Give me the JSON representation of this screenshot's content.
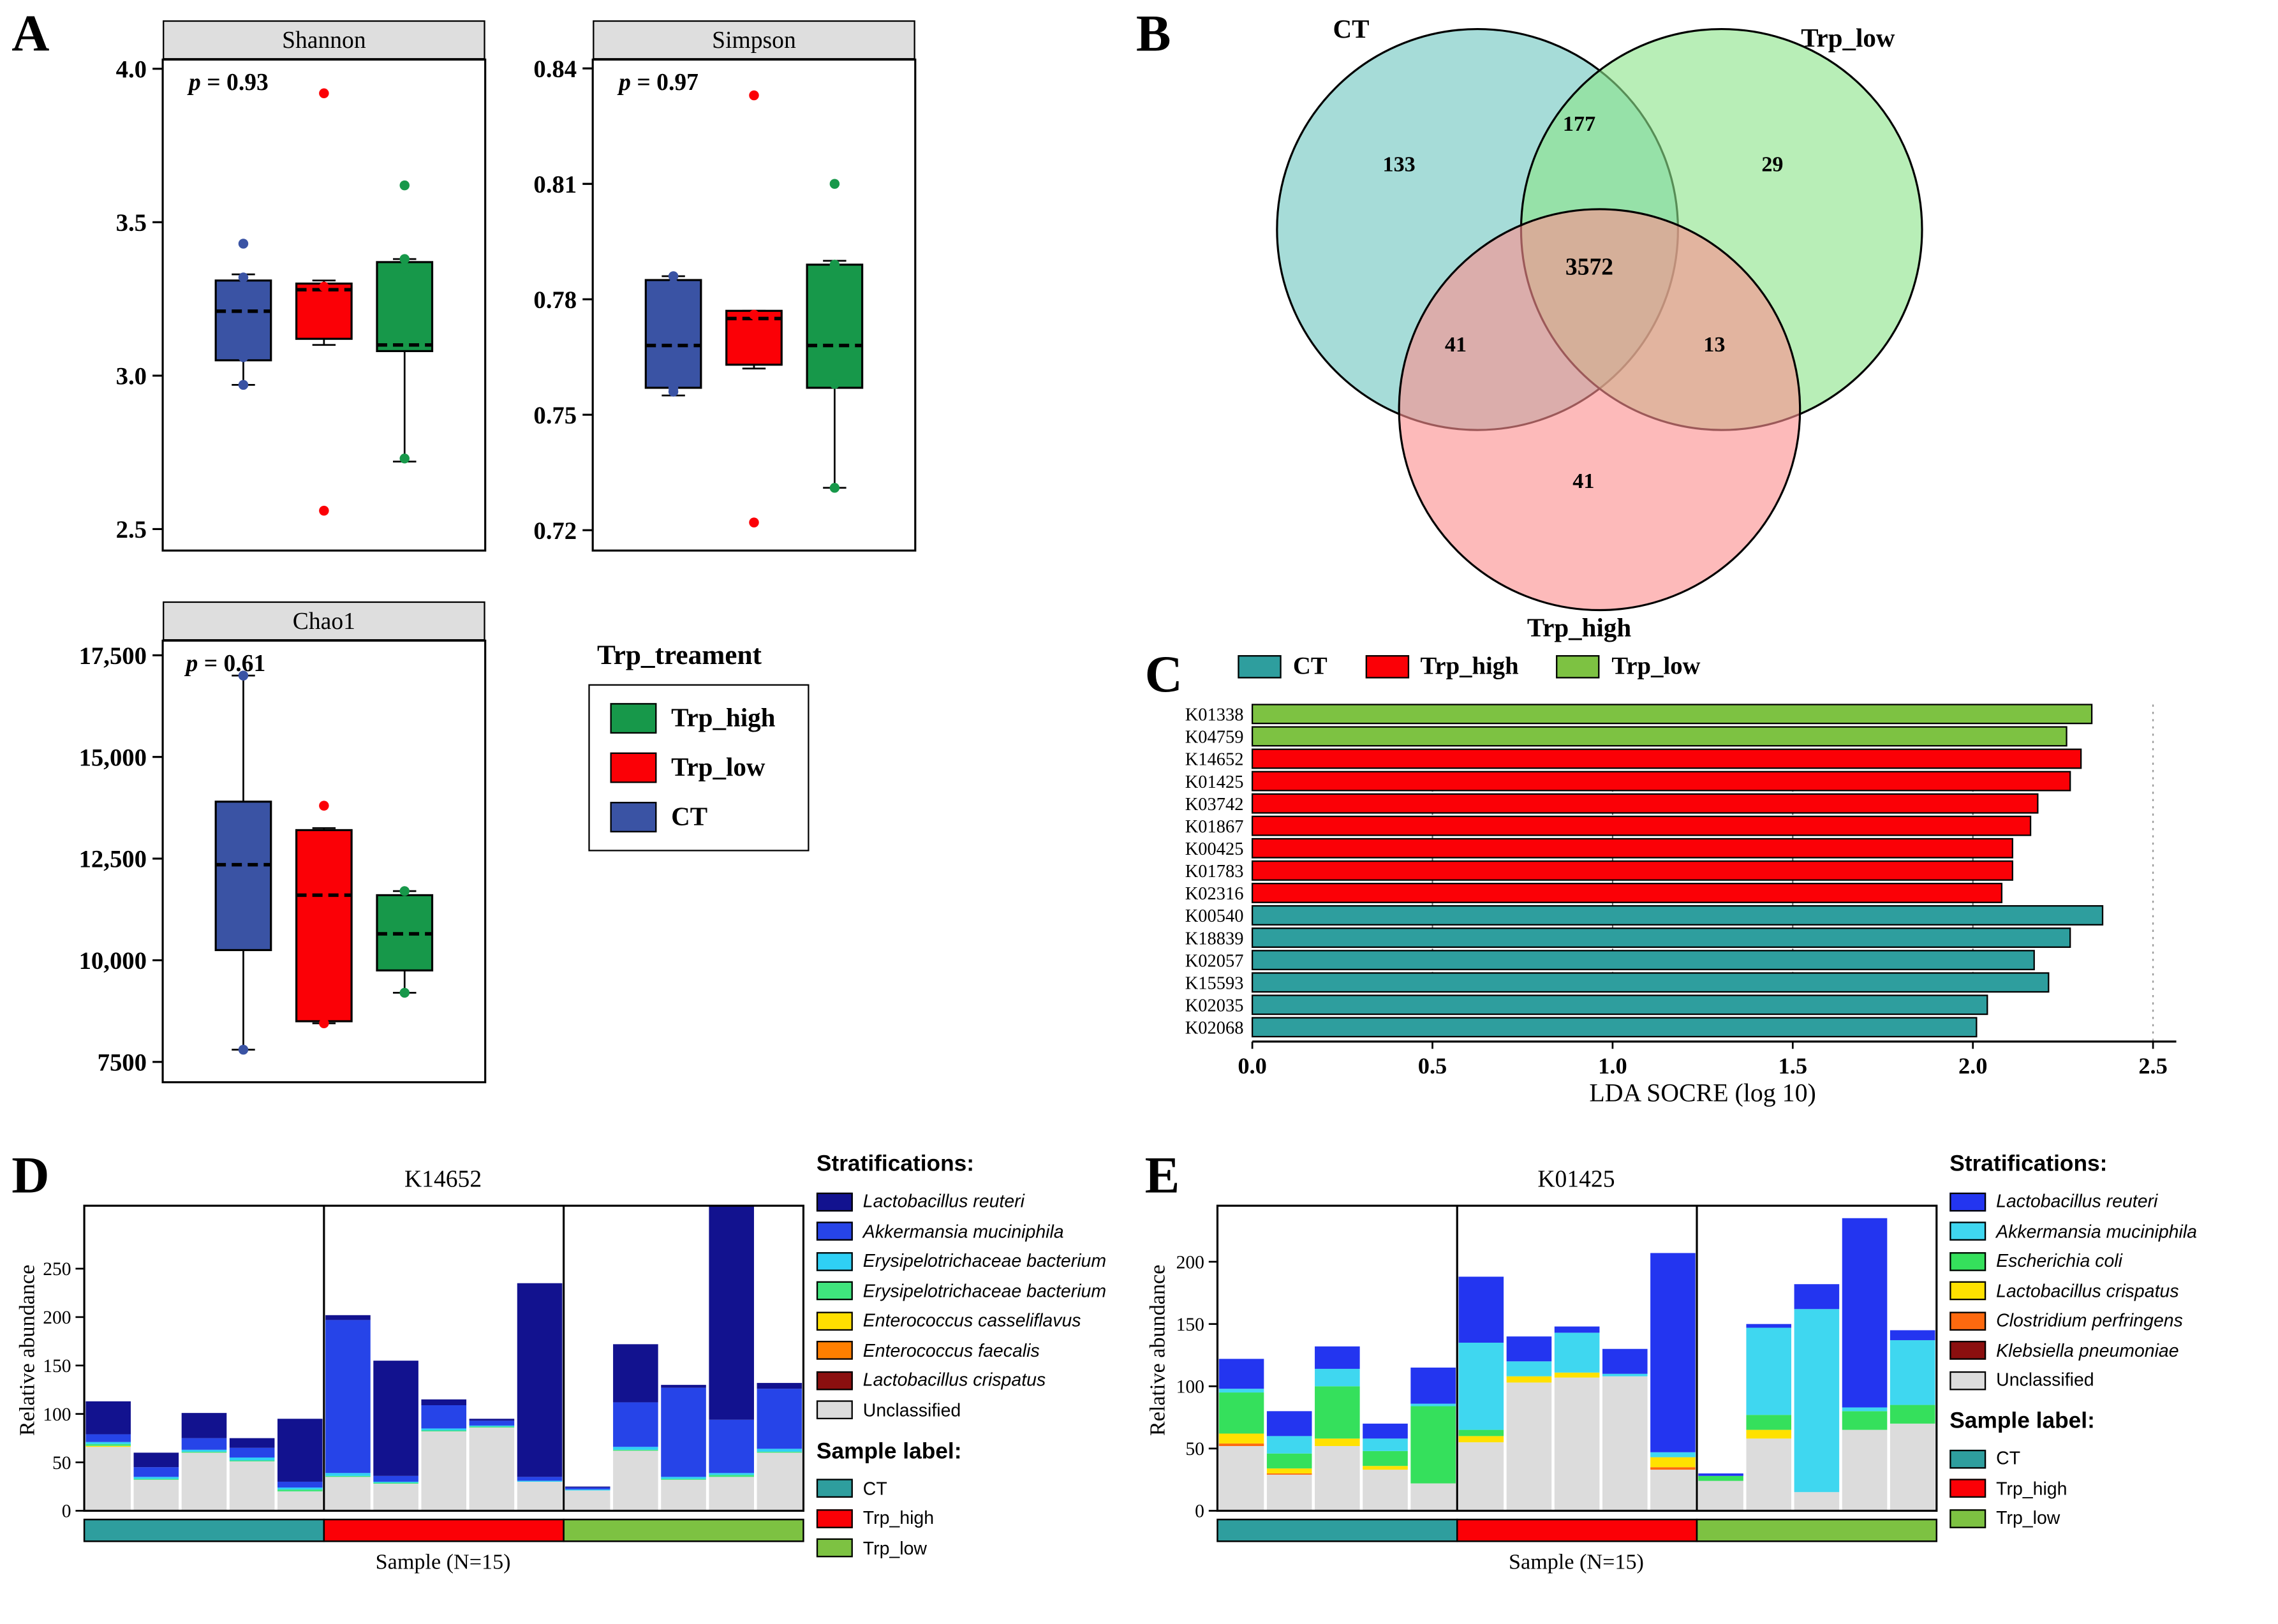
{
  "figure": {
    "panel_labels": {
      "A": "A",
      "B": "B",
      "C": "C",
      "D": "D",
      "E": "E"
    }
  },
  "panel_a_legend": {
    "title": "Trp_treament",
    "items": [
      {
        "label": "Trp_high",
        "color": "#17984a"
      },
      {
        "label": "Trp_low",
        "color": "#fb0006"
      },
      {
        "label": "CT",
        "color": "#3a53a4"
      }
    ]
  },
  "chart_data": [
    {
      "id": "shannon",
      "type": "boxplot",
      "title": "Shannon",
      "p_italic": "p",
      "p_rest": " = 0.93",
      "ylim": [
        2.43,
        4.03
      ],
      "yticks": [
        {
          "v": 4.0,
          "label": "4.0"
        },
        {
          "v": 3.5,
          "label": "3.5"
        },
        {
          "v": 3.0,
          "label": "3.0"
        },
        {
          "v": 2.5,
          "label": "2.5"
        }
      ],
      "groups": [
        {
          "name": "CT",
          "color": "#3a53a4",
          "lo": 2.97,
          "q1": 3.05,
          "median": 3.21,
          "q3": 3.31,
          "hi": 3.33,
          "points": [
            3.43,
            3.32,
            3.06,
            2.97
          ]
        },
        {
          "name": "Trp_low",
          "color": "#fb0006",
          "lo": 3.1,
          "q1": 3.12,
          "median": 3.28,
          "q3": 3.3,
          "hi": 3.31,
          "points": [
            3.92,
            3.29,
            3.15,
            2.56
          ]
        },
        {
          "name": "Trp_high",
          "color": "#17984a",
          "lo": 2.72,
          "q1": 3.08,
          "median": 3.1,
          "q3": 3.37,
          "hi": 3.38,
          "points": [
            3.62,
            3.38,
            3.35,
            2.73
          ]
        }
      ]
    },
    {
      "id": "simpson",
      "type": "boxplot",
      "title": "Simpson",
      "p_italic": "p",
      "p_rest": " = 0.97",
      "ylim": [
        0.7147,
        0.8423
      ],
      "yticks": [
        {
          "v": 0.84,
          "label": "0.84"
        },
        {
          "v": 0.81,
          "label": "0.81"
        },
        {
          "v": 0.78,
          "label": "0.78"
        },
        {
          "v": 0.75,
          "label": "0.75"
        },
        {
          "v": 0.72,
          "label": "0.72"
        }
      ],
      "groups": [
        {
          "name": "CT",
          "color": "#3a53a4",
          "lo": 0.755,
          "q1": 0.757,
          "median": 0.768,
          "q3": 0.785,
          "hi": 0.786,
          "points": [
            0.786,
            0.784,
            0.757,
            0.756
          ]
        },
        {
          "name": "Trp_low",
          "color": "#fb0006",
          "lo": 0.762,
          "q1": 0.763,
          "median": 0.775,
          "q3": 0.777,
          "hi": 0.777,
          "points": [
            0.833,
            0.776,
            0.773,
            0.722
          ]
        },
        {
          "name": "Trp_high",
          "color": "#17984a",
          "lo": 0.731,
          "q1": 0.757,
          "median": 0.768,
          "q3": 0.789,
          "hi": 0.79,
          "points": [
            0.81,
            0.789,
            0.758,
            0.731
          ]
        }
      ]
    },
    {
      "id": "chao1",
      "type": "boxplot",
      "title": "Chao1",
      "p_italic": "p",
      "p_rest": " = 0.61",
      "ylim": [
        7000,
        17860
      ],
      "yticks": [
        {
          "v": 17500,
          "label": "17,500"
        },
        {
          "v": 15000,
          "label": "15,000"
        },
        {
          "v": 12500,
          "label": "12,500"
        },
        {
          "v": 10000,
          "label": "10,000"
        },
        {
          "v": 7500,
          "label": "7500"
        }
      ],
      "groups": [
        {
          "name": "CT",
          "color": "#3a53a4",
          "lo": 7800,
          "q1": 10250,
          "median": 12350,
          "q3": 13900,
          "hi": 17000,
          "points": [
            17000,
            7800
          ]
        },
        {
          "name": "Trp_low",
          "color": "#fb0006",
          "lo": 8450,
          "q1": 8500,
          "median": 11600,
          "q3": 13200,
          "hi": 13250,
          "points": [
            13800,
            8450
          ]
        },
        {
          "name": "Trp_high",
          "color": "#17984a",
          "lo": 9200,
          "q1": 9750,
          "median": 10650,
          "q3": 11600,
          "hi": 11700,
          "points": [
            11700,
            9200
          ]
        }
      ]
    },
    {
      "id": "venn",
      "type": "venn",
      "labels": {
        "top_left": "CT",
        "top_right": "Trp_low",
        "bottom": "Trp_high"
      },
      "colors": {
        "CT": "#6fc6c0",
        "Trp_low": "#8de48a",
        "Trp_high": "#fb8f8f"
      },
      "counts": {
        "CT_only": "133",
        "CT_and_Trp_low": "177",
        "Trp_low_only": "29",
        "center": "3572",
        "CT_and_Trp_high": "41",
        "Trp_low_and_Trp_high": "13",
        "Trp_high_only": "41"
      }
    },
    {
      "id": "lda",
      "type": "bar_h",
      "xlabel": "LDA SOCRE (log 10)",
      "xlim": [
        0,
        2.5
      ],
      "xticks": [
        0,
        0.5,
        1,
        1.5,
        2,
        2.5
      ],
      "legend": [
        {
          "label": "CT",
          "color": "#2e9e9e"
        },
        {
          "label": "Trp_high",
          "color": "#fb0006"
        },
        {
          "label": "Trp_low",
          "color": "#7dc242"
        }
      ],
      "bars": [
        {
          "label": "K01338",
          "group": "Trp_low",
          "value": 2.33
        },
        {
          "label": "K04759",
          "group": "Trp_low",
          "value": 2.26
        },
        {
          "label": "K14652",
          "group": "Trp_high",
          "value": 2.3
        },
        {
          "label": "K01425",
          "group": "Trp_high",
          "value": 2.27
        },
        {
          "label": "K03742",
          "group": "Trp_high",
          "value": 2.18
        },
        {
          "label": "K01867",
          "group": "Trp_high",
          "value": 2.16
        },
        {
          "label": "K00425",
          "group": "Trp_high",
          "value": 2.11
        },
        {
          "label": "K01783",
          "group": "Trp_high",
          "value": 2.11
        },
        {
          "label": "K02316",
          "group": "Trp_high",
          "value": 2.08
        },
        {
          "label": "K00540",
          "group": "CT",
          "value": 2.36
        },
        {
          "label": "K18839",
          "group": "CT",
          "value": 2.27
        },
        {
          "label": "K02057",
          "group": "CT",
          "value": 2.17
        },
        {
          "label": "K15593",
          "group": "CT",
          "value": 2.21
        },
        {
          "label": "K02035",
          "group": "CT",
          "value": 2.04
        },
        {
          "label": "K02068",
          "group": "CT",
          "value": 2.01
        }
      ]
    },
    {
      "id": "k14652_strat",
      "type": "stacked_bar",
      "title": "K14652",
      "ylabel": "Relative abundance",
      "xlabel": "Sample (N=15)",
      "ymax": 315,
      "yticks": [
        0,
        50,
        100,
        150,
        200,
        250
      ],
      "legend_titles": {
        "strat": "Stratifications:",
        "sample": "Sample label:"
      },
      "species": [
        {
          "name": "Lactobacillus reuteri",
          "color": "#12128f",
          "italic": true
        },
        {
          "name": "Akkermansia muciniphila",
          "color": "#2644e8",
          "italic": true
        },
        {
          "name": "Erysipelotrichaceae bacterium",
          "color": "#2fd0f5",
          "italic": true
        },
        {
          "name": "Erysipelotrichaceae bacterium",
          "color": "#3fe57d",
          "italic": true
        },
        {
          "name": "Enterococcus casseliflavus",
          "color": "#ffdf00",
          "italic": true
        },
        {
          "name": "Enterococcus faecalis",
          "color": "#ff7f00",
          "italic": true
        },
        {
          "name": "Lactobacillus crispatus",
          "color": "#8b0f0f",
          "italic": true
        },
        {
          "name": "Unclassified",
          "color": "#dcdcdc",
          "italic": false
        }
      ],
      "groups": [
        {
          "name": "CT",
          "color": "#2e9e9e"
        },
        {
          "name": "Trp_high",
          "color": "#fb0006"
        },
        {
          "name": "Trp_low",
          "color": "#7dc242"
        }
      ],
      "bars": [
        [
          34,
          8,
          2,
          2,
          1,
          0,
          0,
          66
        ],
        [
          15,
          10,
          2,
          1,
          0,
          0,
          0,
          32
        ],
        [
          26,
          12,
          2,
          1,
          0,
          0,
          0,
          60
        ],
        [
          10,
          10,
          3,
          1,
          0,
          0,
          0,
          51
        ],
        [
          65,
          6,
          2,
          2,
          0,
          0,
          0,
          20
        ],
        [
          5,
          158,
          3,
          1,
          0,
          0,
          0,
          35
        ],
        [
          119,
          6,
          1,
          1,
          0,
          0,
          0,
          28
        ],
        [
          6,
          24,
          2,
          1,
          0,
          0,
          0,
          82
        ],
        [
          2,
          5,
          1,
          1,
          0,
          0,
          0,
          86
        ],
        [
          200,
          4,
          1,
          0,
          0,
          0,
          0,
          30
        ],
        [
          1,
          2,
          1,
          0,
          0,
          0,
          0,
          21
        ],
        [
          60,
          46,
          3,
          1,
          0,
          0,
          0,
          62
        ],
        [
          3,
          92,
          2,
          1,
          0,
          0,
          0,
          32
        ],
        [
          221,
          55,
          2,
          2,
          0,
          0,
          0,
          35
        ],
        [
          6,
          62,
          3,
          1,
          0,
          0,
          0,
          60
        ]
      ]
    },
    {
      "id": "k01425_strat",
      "type": "stacked_bar",
      "title": "K01425",
      "ylabel": "Relative abundance",
      "xlabel": "Sample (N=15)",
      "ymax": 245,
      "yticks": [
        0,
        50,
        100,
        150,
        200
      ],
      "legend_titles": {
        "strat": "Stratifications:",
        "sample": "Sample label:"
      },
      "species": [
        {
          "name": "Lactobacillus reuteri",
          "color": "#2335f0",
          "italic": true
        },
        {
          "name": "Akkermansia muciniphila",
          "color": "#3fd7f0",
          "italic": true
        },
        {
          "name": "Escherichia coli",
          "color": "#35e05c",
          "italic": true
        },
        {
          "name": "Lactobacillus crispatus",
          "color": "#ffe100",
          "italic": true
        },
        {
          "name": "Clostridium perfringens",
          "color": "#fd690f",
          "italic": true
        },
        {
          "name": "Klebsiella pneumoniae",
          "color": "#8b0f0f",
          "italic": true
        },
        {
          "name": "Unclassified",
          "color": "#dcdcdc",
          "italic": false
        }
      ],
      "groups": [
        {
          "name": "CT",
          "color": "#2e9e9e"
        },
        {
          "name": "Trp_high",
          "color": "#fb0006"
        },
        {
          "name": "Trp_low",
          "color": "#7dc242"
        }
      ],
      "bars": [
        [
          24,
          3,
          33,
          8,
          2,
          0,
          52
        ],
        [
          20,
          14,
          12,
          4,
          1,
          0,
          29
        ],
        [
          18,
          14,
          42,
          6,
          0,
          0,
          52
        ],
        [
          12,
          10,
          12,
          3,
          0,
          0,
          33
        ],
        [
          29,
          2,
          62,
          0,
          0,
          0,
          22
        ],
        [
          53,
          70,
          5,
          5,
          0,
          0,
          55
        ],
        [
          20,
          12,
          0,
          5,
          0,
          0,
          103
        ],
        [
          5,
          32,
          0,
          4,
          0,
          0,
          107
        ],
        [
          20,
          2,
          0,
          0,
          0,
          0,
          108
        ],
        [
          160,
          4,
          0,
          8,
          2,
          0,
          33
        ],
        [
          2,
          0,
          4,
          0,
          0,
          0,
          24
        ],
        [
          3,
          70,
          12,
          7,
          0,
          0,
          58
        ],
        [
          20,
          147,
          0,
          0,
          0,
          0,
          15
        ],
        [
          152,
          3,
          15,
          0,
          0,
          0,
          65
        ],
        [
          8,
          52,
          15,
          0,
          0,
          0,
          70
        ]
      ]
    }
  ]
}
